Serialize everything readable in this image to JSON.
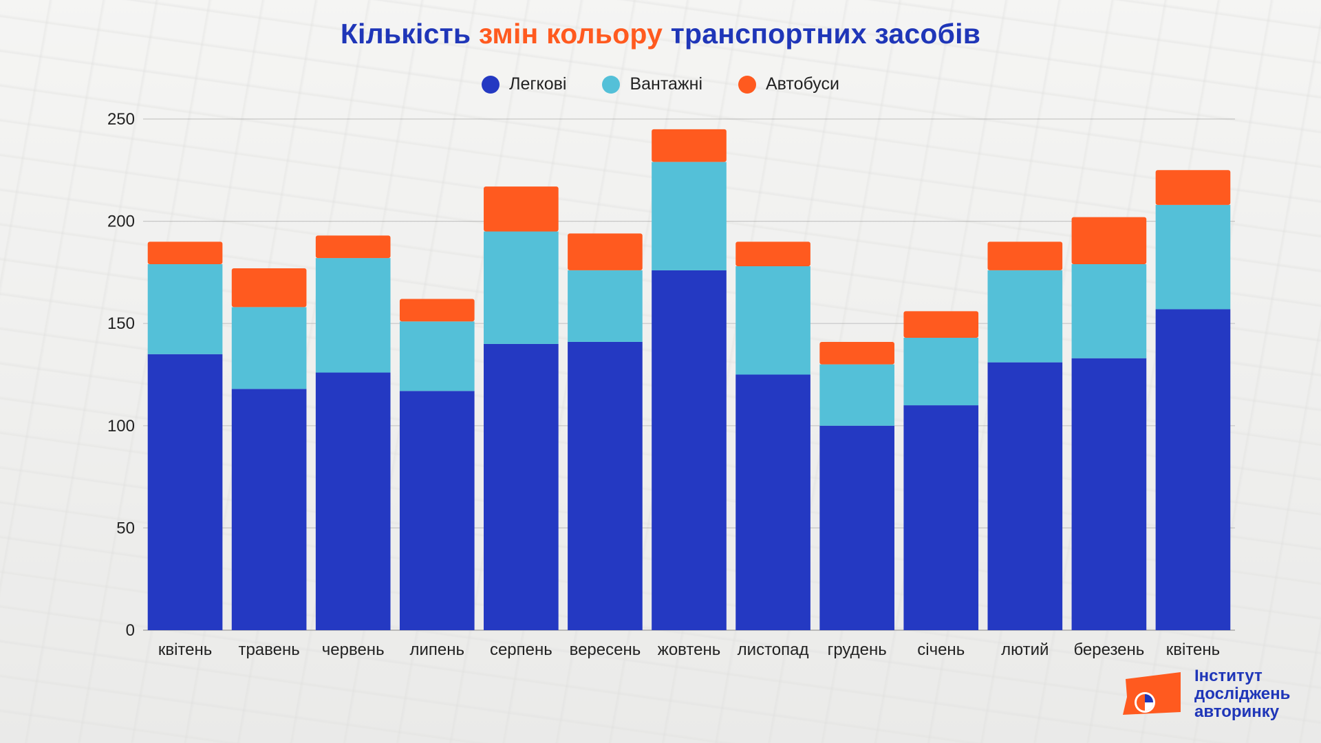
{
  "title": {
    "part1": "Кількість",
    "part2": "змін кольору",
    "part3": "транспортних засобів"
  },
  "colors": {
    "cars": "#2439c2",
    "trucks": "#54c0d8",
    "buses": "#ff5a1f",
    "title": "#1f36b8",
    "accent": "#ff5a1f"
  },
  "logo": {
    "icon": "company-logo-icon",
    "line1": "Інститут",
    "line2": "досліджень",
    "line3": "авторинку"
  },
  "chart_data": {
    "type": "bar",
    "stacked": true,
    "categories": [
      "квітень",
      "травень",
      "червень",
      "липень",
      "серпень",
      "вересень",
      "жовтень",
      "листопад",
      "грудень",
      "січень",
      "лютий",
      "березень",
      "квітень"
    ],
    "series": [
      {
        "name": "Легкові",
        "color": "#2439c2",
        "values": [
          135,
          118,
          126,
          117,
          140,
          141,
          176,
          125,
          100,
          110,
          131,
          133,
          157
        ]
      },
      {
        "name": "Вантажні",
        "color": "#54c0d8",
        "values": [
          44,
          40,
          56,
          34,
          55,
          35,
          53,
          53,
          30,
          33,
          45,
          46,
          51
        ]
      },
      {
        "name": "Автобуси",
        "color": "#ff5a1f",
        "values": [
          11,
          19,
          11,
          11,
          22,
          18,
          16,
          12,
          11,
          13,
          14,
          23,
          17
        ]
      }
    ],
    "y_ticks": [
      "0",
      "50",
      "100",
      "150",
      "200",
      "250"
    ],
    "ylim": [
      0,
      250
    ],
    "grid": true,
    "legend_position": "top-center"
  }
}
